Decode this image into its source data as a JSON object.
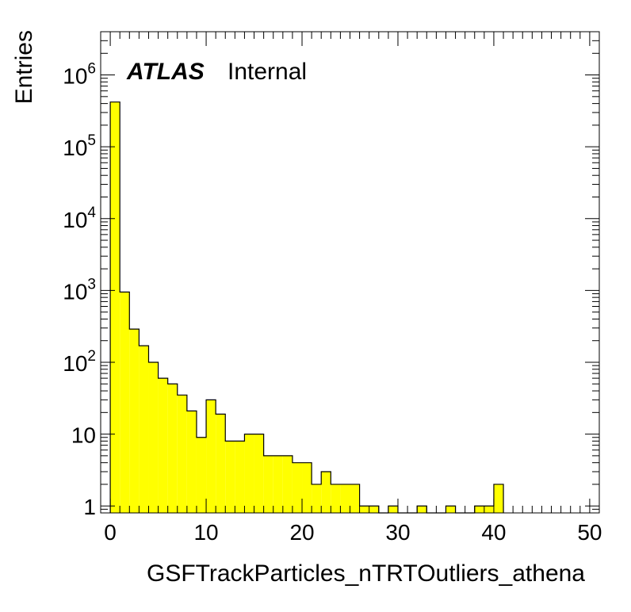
{
  "chart_data": {
    "type": "bar",
    "title": "",
    "xlabel": "GSFTrackParticles_nTRTOutliers_athena",
    "ylabel": "Entries",
    "xlim": [
      -1,
      51
    ],
    "ylim": [
      0.8,
      4000000
    ],
    "log_y": true,
    "grid": false,
    "fill_color": "#ffff00",
    "line_color": "#000000",
    "bin_width": 1,
    "x_ticks": [
      0,
      10,
      20,
      30,
      40,
      50
    ],
    "x_tick_labels": [
      "0",
      "10",
      "20",
      "30",
      "40",
      "50"
    ],
    "y_ticks": [
      1,
      10,
      100,
      1000,
      10000,
      100000,
      1000000
    ],
    "y_tick_labels": [
      {
        "base": "1",
        "exp": ""
      },
      {
        "base": "10",
        "exp": ""
      },
      {
        "base": "10",
        "exp": "2"
      },
      {
        "base": "10",
        "exp": "3"
      },
      {
        "base": "10",
        "exp": "4"
      },
      {
        "base": "10",
        "exp": "5"
      },
      {
        "base": "10",
        "exp": "6"
      }
    ],
    "bins": [
      {
        "x": 0,
        "value": 420000
      },
      {
        "x": 1,
        "value": 950
      },
      {
        "x": 2,
        "value": 290
      },
      {
        "x": 3,
        "value": 170
      },
      {
        "x": 4,
        "value": 100
      },
      {
        "x": 5,
        "value": 60
      },
      {
        "x": 6,
        "value": 50
      },
      {
        "x": 7,
        "value": 35
      },
      {
        "x": 8,
        "value": 21
      },
      {
        "x": 9,
        "value": 9
      },
      {
        "x": 10,
        "value": 30
      },
      {
        "x": 11,
        "value": 19
      },
      {
        "x": 12,
        "value": 8
      },
      {
        "x": 13,
        "value": 8
      },
      {
        "x": 14,
        "value": 10
      },
      {
        "x": 15,
        "value": 10
      },
      {
        "x": 16,
        "value": 5
      },
      {
        "x": 17,
        "value": 5
      },
      {
        "x": 18,
        "value": 5
      },
      {
        "x": 19,
        "value": 4
      },
      {
        "x": 20,
        "value": 4
      },
      {
        "x": 21,
        "value": 2
      },
      {
        "x": 22,
        "value": 3
      },
      {
        "x": 23,
        "value": 2
      },
      {
        "x": 24,
        "value": 2
      },
      {
        "x": 25,
        "value": 2
      },
      {
        "x": 26,
        "value": 1
      },
      {
        "x": 27,
        "value": 1
      },
      {
        "x": 29,
        "value": 1
      },
      {
        "x": 32,
        "value": 1
      },
      {
        "x": 35,
        "value": 1
      },
      {
        "x": 38,
        "value": 1
      },
      {
        "x": 39,
        "value": 1
      },
      {
        "x": 40,
        "value": 2
      }
    ]
  },
  "labels": {
    "atlas": "ATLAS",
    "internal": "Internal"
  }
}
